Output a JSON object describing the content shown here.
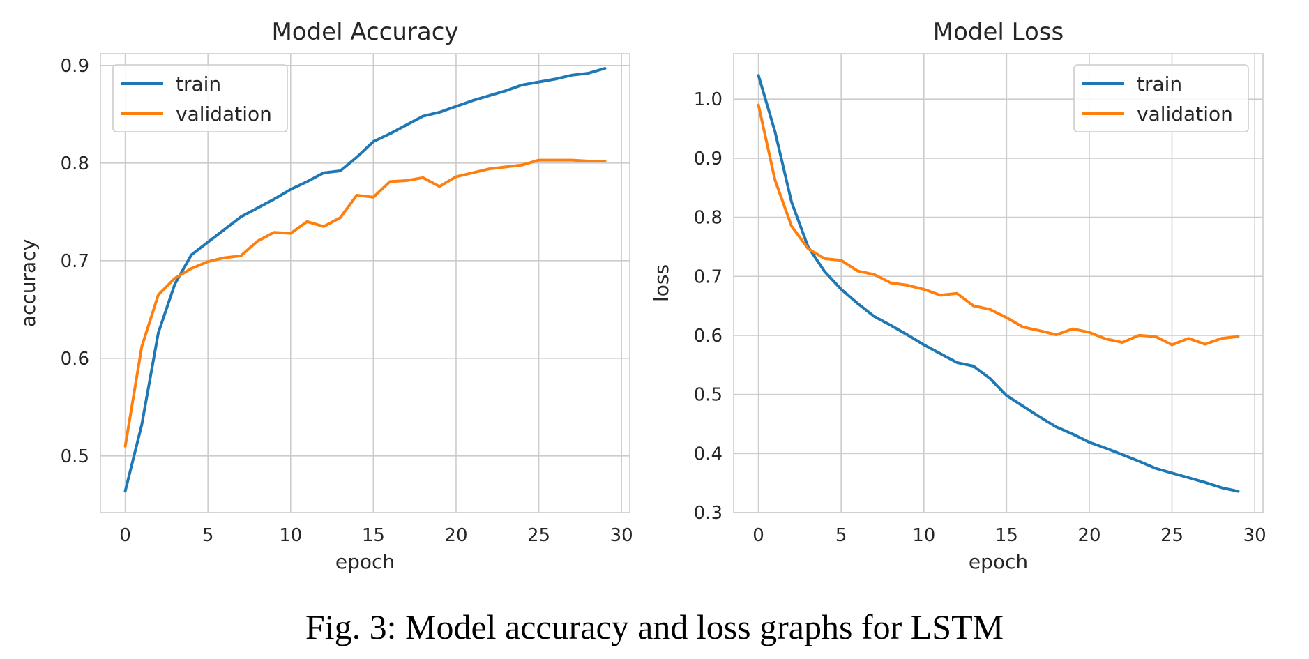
{
  "figure": {
    "caption": "Fig. 3: Model accuracy and loss graphs for LSTM"
  },
  "chart_data": [
    {
      "type": "line",
      "title": "Model Accuracy",
      "xlabel": "epoch",
      "ylabel": "accuracy",
      "xlim": [
        -1.5,
        30.5
      ],
      "ylim": [
        0.442,
        0.912
      ],
      "xticks": [
        0,
        5,
        10,
        15,
        20,
        25,
        30
      ],
      "yticks": [
        0.5,
        0.6,
        0.7,
        0.8,
        0.9
      ],
      "ytick_labels": [
        "0.5",
        "0.6",
        "0.7",
        "0.8",
        "0.9"
      ],
      "grid": true,
      "legend": {
        "placement": "upper-left"
      },
      "x": [
        0,
        1,
        2,
        3,
        4,
        5,
        6,
        7,
        8,
        9,
        10,
        11,
        12,
        13,
        14,
        15,
        16,
        17,
        18,
        19,
        20,
        21,
        22,
        23,
        24,
        25,
        26,
        27,
        28,
        29
      ],
      "series": [
        {
          "name": "train",
          "color": "#1f77b4",
          "values": [
            0.464,
            0.532,
            0.626,
            0.676,
            0.706,
            0.719,
            0.732,
            0.745,
            0.754,
            0.763,
            0.773,
            0.781,
            0.79,
            0.792,
            0.806,
            0.822,
            0.83,
            0.839,
            0.848,
            0.852,
            0.858,
            0.864,
            0.869,
            0.874,
            0.88,
            0.883,
            0.886,
            0.89,
            0.892,
            0.897
          ]
        },
        {
          "name": "validation",
          "color": "#ff7f0e",
          "values": [
            0.51,
            0.612,
            0.665,
            0.682,
            0.692,
            0.699,
            0.703,
            0.705,
            0.72,
            0.729,
            0.728,
            0.74,
            0.735,
            0.744,
            0.767,
            0.765,
            0.781,
            0.782,
            0.785,
            0.776,
            0.786,
            0.79,
            0.794,
            0.796,
            0.798,
            0.803,
            0.803,
            0.803,
            0.802,
            0.802
          ]
        }
      ]
    },
    {
      "type": "line",
      "title": "Model Loss",
      "xlabel": "epoch",
      "ylabel": "loss",
      "xlim": [
        -1.5,
        30.5
      ],
      "ylim": [
        0.3,
        1.077
      ],
      "xticks": [
        0,
        5,
        10,
        15,
        20,
        25,
        30
      ],
      "yticks": [
        0.3,
        0.4,
        0.5,
        0.6,
        0.7,
        0.8,
        0.9,
        1.0
      ],
      "ytick_labels": [
        "0.3",
        "0.4",
        "0.5",
        "0.6",
        "0.7",
        "0.8",
        "0.9",
        "1.0"
      ],
      "grid": true,
      "legend": {
        "placement": "upper-right"
      },
      "x": [
        0,
        1,
        2,
        3,
        4,
        5,
        6,
        7,
        8,
        9,
        10,
        11,
        12,
        13,
        14,
        15,
        16,
        17,
        18,
        19,
        20,
        21,
        22,
        23,
        24,
        25,
        26,
        27,
        28,
        29
      ],
      "series": [
        {
          "name": "train",
          "color": "#1f77b4",
          "values": [
            1.04,
            0.945,
            0.826,
            0.75,
            0.708,
            0.678,
            0.654,
            0.632,
            0.617,
            0.601,
            0.584,
            0.569,
            0.554,
            0.548,
            0.527,
            0.498,
            0.48,
            0.462,
            0.445,
            0.433,
            0.419,
            0.409,
            0.398,
            0.387,
            0.375,
            0.367,
            0.359,
            0.351,
            0.342,
            0.336
          ]
        },
        {
          "name": "validation",
          "color": "#ff7f0e",
          "values": [
            0.99,
            0.863,
            0.785,
            0.747,
            0.73,
            0.727,
            0.709,
            0.703,
            0.689,
            0.685,
            0.678,
            0.668,
            0.671,
            0.65,
            0.644,
            0.63,
            0.614,
            0.608,
            0.601,
            0.611,
            0.605,
            0.594,
            0.588,
            0.6,
            0.598,
            0.584,
            0.595,
            0.585,
            0.595,
            0.598
          ]
        }
      ]
    }
  ]
}
